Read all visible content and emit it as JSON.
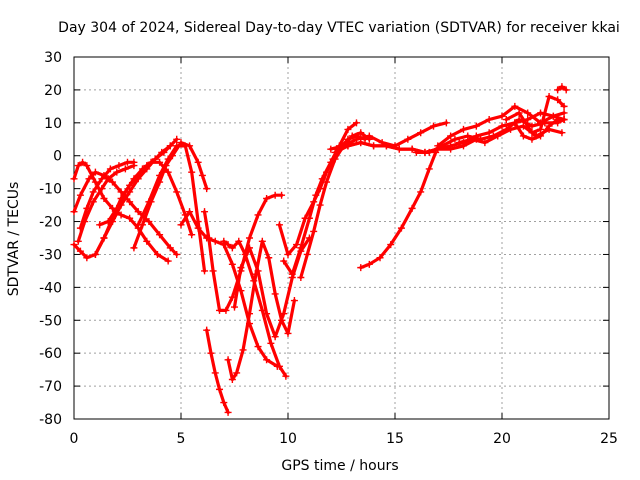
{
  "chart_data": {
    "type": "scatter",
    "title": "Day 304 of 2024, Sidereal Day-to-day VTEC variation (SDTVAR) for receiver kkai",
    "xlabel": "GPS time / hours",
    "ylabel": "SDTVAR / TECUs",
    "xlim": [
      0,
      25
    ],
    "ylim": [
      -80,
      30
    ],
    "x_ticks": [
      "0",
      "5",
      "10",
      "15",
      "20",
      "25"
    ],
    "y_ticks": [
      "30",
      "20",
      "10",
      "0",
      "-10",
      "-20",
      "-30",
      "-40",
      "-50",
      "-60",
      "-70",
      "-80"
    ],
    "grid": true,
    "marker": "plus",
    "color": "#ff0000",
    "series": [
      {
        "x": [
          0.0,
          0.2,
          0.4,
          0.6,
          1.0,
          1.4,
          1.8,
          2.2,
          2.6,
          3.0,
          3.4,
          3.9,
          4.4
        ],
        "y": [
          -7,
          -3,
          -2,
          -3,
          -8,
          -13,
          -16,
          -18,
          -19,
          -22,
          -26,
          -30,
          -32
        ]
      },
      {
        "x": [
          0.0,
          0.3,
          0.7,
          1.0,
          1.4,
          1.8,
          2.2,
          2.6,
          3.0,
          3.5,
          4.0,
          4.5,
          4.8
        ],
        "y": [
          -17,
          -12,
          -7,
          -5,
          -6,
          -8,
          -11,
          -14,
          -17,
          -20,
          -24,
          -28,
          -30
        ]
      },
      {
        "x": [
          0.0,
          0.3,
          0.6,
          1.0,
          1.4,
          1.8,
          2.2,
          2.6,
          3.0,
          3.4,
          3.8,
          4.2,
          4.5
        ],
        "y": [
          -27,
          -29,
          -31,
          -30,
          -25,
          -19,
          -13,
          -9,
          -6,
          -3,
          -1,
          1,
          3
        ]
      },
      {
        "x": [
          0.3,
          0.6,
          0.9,
          1.3,
          1.7,
          2.1,
          2.5,
          2.8
        ],
        "y": [
          -22,
          -16,
          -11,
          -7,
          -4,
          -3,
          -2,
          -2
        ]
      },
      {
        "x": [
          0.2,
          0.5,
          0.9,
          1.3,
          1.6,
          2.0,
          2.4,
          2.8
        ],
        "y": [
          -26,
          -20,
          -14,
          -10,
          -7,
          -5,
          -4,
          -3
        ]
      },
      {
        "x": [
          1.0,
          1.4,
          1.8,
          2.2,
          2.6,
          3.0,
          3.4,
          3.8,
          4.1,
          4.5,
          4.8
        ],
        "y": [
          -30,
          -25,
          -20,
          -15,
          -11,
          -7,
          -4,
          -1,
          1,
          3,
          5
        ]
      },
      {
        "x": [
          1.2,
          1.6,
          2.0,
          2.4,
          2.8,
          3.2,
          3.6,
          4.0,
          4.4,
          4.8,
          5.2,
          5.5
        ],
        "y": [
          -21,
          -20,
          -16,
          -11,
          -7,
          -4,
          -2,
          -2,
          -5,
          -11,
          -18,
          -24
        ]
      },
      {
        "x": [
          2.8,
          3.2,
          3.6,
          4.0,
          4.3,
          4.6,
          5.0,
          5.4,
          5.8,
          6.0,
          6.2
        ],
        "y": [
          -28,
          -21,
          -14,
          -8,
          -3,
          0,
          4,
          3,
          -2,
          -6,
          -10
        ]
      },
      {
        "x": [
          3.0,
          3.5,
          4.0,
          4.4,
          4.8,
          5.2,
          5.5,
          5.8,
          6.1
        ],
        "y": [
          -21,
          -14,
          -6,
          -1,
          3,
          3,
          -5,
          -20,
          -35
        ]
      },
      {
        "x": [
          5.0,
          5.4,
          5.8,
          6.2,
          6.6,
          7.0,
          7.4,
          7.8,
          8.2,
          8.6,
          9.0,
          9.5
        ],
        "y": [
          -21,
          -17,
          -22,
          -25,
          -26,
          -27,
          -33,
          -41,
          -51,
          -58,
          -62,
          -64
        ]
      },
      {
        "x": [
          6.1,
          6.3,
          6.5,
          6.8,
          7.1,
          7.4,
          7.8,
          8.2,
          8.6,
          9.0,
          9.4,
          9.7
        ],
        "y": [
          -17,
          -25,
          -35,
          -47,
          -47,
          -43,
          -35,
          -25,
          -18,
          -13,
          -12,
          -12
        ]
      },
      {
        "x": [
          6.2,
          6.4,
          6.6,
          6.8,
          7.0,
          7.2
        ],
        "y": [
          -53,
          -60,
          -66,
          -71,
          -75,
          -78
        ]
      },
      {
        "x": [
          7.0,
          7.2,
          7.4,
          7.7,
          8.0,
          8.4,
          8.8,
          9.2,
          9.6,
          9.9
        ],
        "y": [
          -26,
          -27,
          -28,
          -26,
          -30,
          -38,
          -47,
          -57,
          -64,
          -67
        ]
      },
      {
        "x": [
          7.2,
          7.4,
          7.6,
          7.9,
          8.2,
          8.5,
          8.8,
          9.1,
          9.4,
          9.7,
          10.0,
          10.3
        ],
        "y": [
          -62,
          -68,
          -66,
          -59,
          -48,
          -36,
          -26,
          -31,
          -42,
          -50,
          -54,
          -44
        ]
      },
      {
        "x": [
          7.5,
          7.8,
          8.2,
          8.6,
          9.0,
          9.4,
          9.8,
          10.2,
          10.6,
          11.0
        ],
        "y": [
          -46,
          -34,
          -28,
          -35,
          -48,
          -55,
          -48,
          -37,
          -29,
          -25
        ]
      },
      {
        "x": [
          9.8,
          10.2,
          10.6,
          11.0,
          11.3,
          11.6,
          12.0,
          12.4,
          12.8,
          13.2
        ],
        "y": [
          -32,
          -36,
          -28,
          -19,
          -12,
          -7,
          -2,
          3,
          8,
          10
        ]
      },
      {
        "x": [
          9.6,
          10.0,
          10.4,
          10.8,
          11.2,
          11.5,
          11.8,
          12.1,
          12.4,
          12.8,
          13.2,
          13.6
        ],
        "y": [
          -21,
          -30,
          -27,
          -19,
          -14,
          -10,
          -5,
          -1,
          2,
          5,
          6,
          5
        ]
      },
      {
        "x": [
          10.6,
          10.9,
          11.2,
          11.5,
          11.8,
          12.2,
          12.6,
          13.0,
          13.4,
          13.8
        ],
        "y": [
          -37,
          -30,
          -23,
          -15,
          -8,
          -1,
          3,
          6,
          7,
          5
        ]
      },
      {
        "x": [
          12.0,
          12.6,
          13.2,
          13.8,
          14.4,
          15.0,
          15.6,
          16.2,
          16.8,
          17.4
        ],
        "y": [
          2,
          3,
          5,
          6,
          4,
          3,
          5,
          7,
          9,
          10
        ]
      },
      {
        "x": [
          12.2,
          12.8,
          13.4,
          14.0,
          14.6,
          15.2,
          15.8,
          16.4,
          17.0,
          17.6,
          18.2,
          18.8
        ],
        "y": [
          1,
          3,
          4,
          3,
          3,
          2,
          2,
          1,
          2,
          2,
          3,
          5
        ]
      },
      {
        "x": [
          13.4,
          13.8,
          14.3,
          14.8,
          15.3,
          15.8,
          16.2,
          16.6,
          16.9
        ],
        "y": [
          -34,
          -33,
          -31,
          -27,
          -22,
          -16,
          -11,
          -4,
          1
        ]
      },
      {
        "x": [
          12.8,
          13.4,
          14.0,
          14.6,
          15.2,
          15.8,
          16.4,
          17.0,
          17.6,
          18.2,
          18.8,
          19.4,
          20.0,
          20.6,
          21.2,
          21.8,
          22.4,
          22.9
        ],
        "y": [
          3,
          4,
          3,
          3,
          2,
          2,
          1,
          2,
          3,
          4,
          6,
          7,
          9,
          10,
          11,
          13,
          12,
          11
        ]
      },
      {
        "x": [
          16.0,
          16.6,
          17.2,
          17.8,
          18.4,
          19.0,
          19.6,
          20.2,
          20.8,
          21.4,
          22.0,
          22.6,
          22.9
        ],
        "y": [
          1,
          1,
          3,
          5,
          6,
          5,
          6,
          8,
          11,
          9,
          10,
          10,
          11
        ]
      },
      {
        "x": [
          17.0,
          17.6,
          18.2,
          18.8,
          19.4,
          20.0,
          20.6,
          21.2,
          21.8,
          22.4,
          22.9
        ],
        "y": [
          3,
          6,
          8,
          9,
          11,
          12,
          15,
          13,
          10,
          12,
          13
        ]
      },
      {
        "x": [
          18.0,
          18.6,
          19.2,
          19.8,
          20.4,
          21.0,
          21.6,
          22.2,
          22.8
        ],
        "y": [
          4,
          5,
          4,
          6,
          8,
          9,
          6,
          8,
          7
        ]
      },
      {
        "x": [
          20.2,
          20.8,
          21.4,
          21.8,
          22.2,
          22.6,
          22.9
        ],
        "y": [
          11,
          13,
          7,
          8,
          18,
          17,
          15
        ]
      },
      {
        "x": [
          20.6,
          21.0,
          21.4,
          21.8,
          22.2,
          22.6,
          22.9
        ],
        "y": [
          10,
          6,
          5,
          6,
          9,
          11,
          11
        ]
      },
      {
        "x": [
          22.6,
          22.8,
          23.0
        ],
        "y": [
          20,
          21,
          20
        ]
      }
    ]
  }
}
